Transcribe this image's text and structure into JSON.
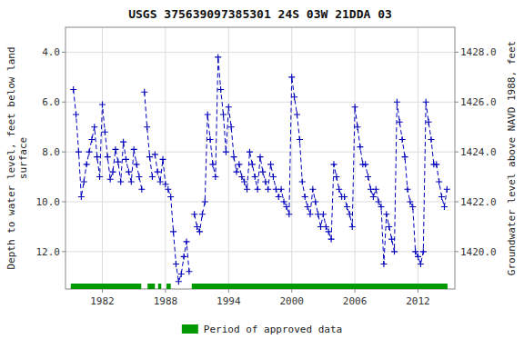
{
  "chart_data": {
    "type": "line",
    "title": "USGS 375639097385301 24S 03W 21DDA 03",
    "ylabel": "Depth to water level, feet below land\nsurface",
    "y2label": "Groundwater level above NAVD 1988, feet",
    "xlim": [
      1978.5,
      2015.5
    ],
    "xticks": [
      1982,
      1988,
      1994,
      2000,
      2006,
      2012
    ],
    "ylim": [
      13.5,
      3.0
    ],
    "yticks": [
      {
        "value": 4.0,
        "label": "4.0"
      },
      {
        "value": 6.0,
        "label": "6.0"
      },
      {
        "value": 8.0,
        "label": "8.0"
      },
      {
        "value": 10.0,
        "label": "10.0"
      },
      {
        "value": 12.0,
        "label": "12.0"
      }
    ],
    "y2lim": [
      1418.5,
      1429.0
    ],
    "y2ticks": [
      {
        "value": 1420.0,
        "label": "1420.0"
      },
      {
        "value": 1422.0,
        "label": "1422.0"
      },
      {
        "value": 1424.0,
        "label": "1424.0"
      },
      {
        "value": 1426.0,
        "label": "1426.0"
      },
      {
        "value": 1428.0,
        "label": "1428.0"
      }
    ],
    "grid": true,
    "legend": "bottom",
    "series": [
      {
        "color": "#0000bb",
        "marker": "plus",
        "line_style": "dashed",
        "x": [
          1979.25,
          1979.5,
          1979.75,
          1980.0,
          1980.25,
          1980.5,
          1980.75,
          1981.0,
          1981.25,
          1981.5,
          1981.75,
          1982.0,
          1982.25,
          1982.5,
          1982.75,
          1983.0,
          1983.25,
          1983.5,
          1983.75,
          1984.0,
          1984.25,
          1984.5,
          1984.75,
          1985.0,
          1985.25,
          1985.5,
          1985.75
        ],
        "values": [
          5.5,
          6.5,
          8.0,
          9.8,
          9.2,
          8.5,
          8.0,
          7.5,
          7.0,
          8.2,
          9.0,
          6.1,
          7.2,
          8.2,
          9.1,
          8.8,
          7.9,
          8.4,
          9.2,
          7.6,
          8.3,
          8.8,
          9.2,
          7.9,
          8.5,
          9.0,
          9.5
        ]
      },
      {
        "color": "#0000bb",
        "marker": "plus",
        "line_style": "dashed",
        "x": [
          1986.0,
          1986.25,
          1986.5,
          1986.75
        ],
        "values": [
          5.6,
          7.0,
          8.2,
          9.0
        ]
      },
      {
        "color": "#0000bb",
        "marker": "plus",
        "line_style": "dashed",
        "x": [
          1987.0,
          1987.25,
          1987.5,
          1987.75,
          1988.0
        ],
        "values": [
          8.1,
          8.8,
          9.2,
          8.3,
          9.3
        ]
      },
      {
        "color": "#0000bb",
        "marker": "plus",
        "line_style": "dashed",
        "x": [
          1988.25,
          1988.5,
          1988.75,
          1989.0,
          1989.25,
          1989.5,
          1989.75,
          1990.0,
          1990.25
        ],
        "values": [
          9.5,
          9.8,
          11.2,
          12.5,
          13.2,
          12.9,
          12.2,
          11.6,
          12.8
        ]
      },
      {
        "color": "#0000bb",
        "marker": "plus",
        "line_style": "dashed",
        "x": [
          1990.75,
          1991.0,
          1991.25,
          1991.5,
          1991.75,
          1992.0,
          1992.25,
          1992.5,
          1992.75,
          1993.0,
          1993.25,
          1993.5,
          1993.75,
          1994.0,
          1994.25,
          1994.5,
          1994.75,
          1995.0,
          1995.25,
          1995.5,
          1995.75,
          1996.0,
          1996.25,
          1996.5,
          1996.75,
          1997.0,
          1997.25,
          1997.5,
          1997.75,
          1998.0,
          1998.25,
          1998.5,
          1998.75,
          1999.0,
          1999.25,
          1999.5,
          1999.75,
          2000.0,
          2000.25,
          2000.5,
          2000.75,
          2001.0,
          2001.25,
          2001.5,
          2001.75,
          2002.0,
          2002.25,
          2002.5,
          2002.75,
          2003.0,
          2003.25,
          2003.5,
          2003.75,
          2004.0,
          2004.25,
          2004.5,
          2004.75,
          2005.0,
          2005.25,
          2005.5,
          2005.75,
          2006.0,
          2006.25,
          2006.5,
          2006.75,
          2007.0,
          2007.25,
          2007.5,
          2007.75,
          2008.0,
          2008.25,
          2008.5,
          2008.75,
          2009.0,
          2009.25,
          2009.5,
          2009.75,
          2010.0,
          2010.25,
          2010.5,
          2010.75,
          2011.0,
          2011.25,
          2011.5,
          2011.75,
          2012.0,
          2012.25,
          2012.5,
          2012.75,
          2013.0,
          2013.25,
          2013.5,
          2013.75,
          2014.0,
          2014.25,
          2014.5,
          2014.75
        ],
        "values": [
          10.5,
          11.0,
          11.2,
          10.5,
          10.0,
          6.5,
          7.5,
          8.5,
          9.0,
          4.2,
          5.5,
          6.5,
          8.0,
          6.2,
          7.0,
          8.2,
          8.8,
          8.5,
          9.0,
          9.2,
          9.5,
          8.0,
          8.5,
          9.0,
          9.5,
          8.2,
          8.8,
          9.2,
          9.5,
          8.5,
          9.0,
          9.5,
          9.8,
          9.5,
          10.0,
          10.2,
          10.5,
          5.0,
          5.8,
          6.5,
          7.5,
          9.2,
          9.8,
          10.2,
          10.5,
          9.5,
          10.0,
          10.5,
          11.0,
          10.5,
          11.0,
          11.2,
          11.5,
          8.5,
          9.0,
          9.5,
          9.8,
          9.8,
          10.2,
          10.5,
          11.0,
          6.2,
          7.0,
          7.8,
          8.5,
          8.5,
          9.0,
          9.5,
          9.8,
          9.5,
          10.0,
          10.2,
          12.5,
          10.5,
          11.0,
          11.5,
          12.0,
          6.0,
          6.8,
          7.5,
          8.2,
          9.5,
          10.0,
          10.2,
          12.0,
          12.2,
          12.5,
          12.0,
          6.0,
          6.8,
          7.5,
          8.5,
          8.5,
          9.2,
          9.8,
          10.2,
          9.5
        ]
      }
    ],
    "periods": {
      "name": "Period of approved data",
      "color": "#009900",
      "start": [
        1979.0,
        1986.3,
        1987.3,
        1988.1,
        1990.5
      ],
      "end": [
        1985.7,
        1987.0,
        1987.6,
        1988.5,
        2014.8
      ]
    }
  }
}
